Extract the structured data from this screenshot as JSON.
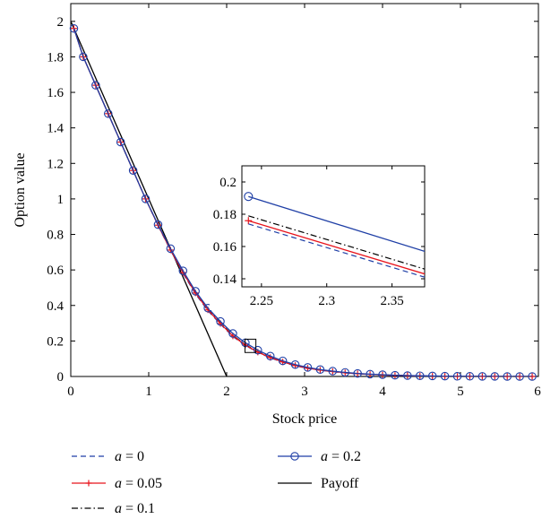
{
  "chart_data": [
    {
      "type": "line",
      "xlabel": "Stock price",
      "ylabel": "Option value",
      "xlim": [
        0,
        6
      ],
      "ylim": [
        0,
        2.1
      ],
      "xticks": [
        "0",
        "1",
        "2",
        "3",
        "4",
        "5",
        "6"
      ],
      "yticks": [
        "0",
        "0.2",
        "0.4",
        "0.6",
        "0.8",
        "1",
        "1.2",
        "1.4",
        "1.6",
        "1.8",
        "2"
      ],
      "grid": false,
      "legend_position": "below",
      "x": [
        0.04,
        0.16,
        0.32,
        0.48,
        0.64,
        0.8,
        0.96,
        1.12,
        1.28,
        1.44,
        1.6,
        1.76,
        1.92,
        2.08,
        2.24,
        2.4,
        2.56,
        2.72,
        2.88,
        3.04,
        3.2,
        3.36,
        3.52,
        3.68,
        3.84,
        4.0,
        4.16,
        4.32,
        4.48,
        4.64,
        4.8,
        4.96,
        5.12,
        5.28,
        5.44,
        5.6,
        5.76,
        5.92
      ],
      "series": [
        {
          "name": "a = 0",
          "color": "#1f3fa6",
          "style": "dashed",
          "values": [
            1.96,
            1.8,
            1.64,
            1.48,
            1.32,
            1.16,
            1.0,
            0.85,
            0.71,
            0.58,
            0.465,
            0.37,
            0.295,
            0.225,
            0.175,
            0.135,
            0.105,
            0.08,
            0.06,
            0.045,
            0.035,
            0.027,
            0.02,
            0.015,
            0.011,
            0.008,
            0.006,
            0.004,
            0.003,
            0.002,
            0.0015,
            0.001,
            0.001,
            0.0005,
            0.0005,
            0.0,
            0.0,
            0.0
          ]
        },
        {
          "name": "a = 0.05",
          "color": "#e8141c",
          "style": "solid-plus",
          "values": [
            1.96,
            1.8,
            1.64,
            1.48,
            1.32,
            1.16,
            1.0,
            0.852,
            0.712,
            0.585,
            0.47,
            0.375,
            0.298,
            0.228,
            0.177,
            0.137,
            0.107,
            0.082,
            0.062,
            0.047,
            0.036,
            0.028,
            0.021,
            0.016,
            0.012,
            0.009,
            0.006,
            0.005,
            0.003,
            0.002,
            0.0015,
            0.001,
            0.001,
            0.0005,
            0.0005,
            0.0,
            0.0,
            0.0
          ]
        },
        {
          "name": "a = 0.1",
          "color": "#000000",
          "style": "dashdot",
          "values": [
            1.96,
            1.8,
            1.64,
            1.48,
            1.32,
            1.16,
            1.0,
            0.853,
            0.714,
            0.588,
            0.473,
            0.378,
            0.301,
            0.231,
            0.18,
            0.139,
            0.109,
            0.083,
            0.063,
            0.048,
            0.037,
            0.028,
            0.021,
            0.016,
            0.012,
            0.009,
            0.007,
            0.005,
            0.003,
            0.002,
            0.0015,
            0.001,
            0.001,
            0.0005,
            0.0005,
            0.0,
            0.0,
            0.0
          ]
        },
        {
          "name": "a = 0.2",
          "color": "#1f3fa6",
          "style": "solid-circle",
          "values": [
            1.96,
            1.8,
            1.64,
            1.48,
            1.32,
            1.16,
            1.0,
            0.855,
            0.72,
            0.595,
            0.48,
            0.385,
            0.31,
            0.242,
            0.19,
            0.148,
            0.115,
            0.088,
            0.067,
            0.051,
            0.039,
            0.03,
            0.023,
            0.017,
            0.013,
            0.01,
            0.007,
            0.005,
            0.004,
            0.003,
            0.002,
            0.001,
            0.001,
            0.0005,
            0.0005,
            0.0,
            0.0,
            0.0
          ]
        },
        {
          "name": "Payoff",
          "color": "#000000",
          "style": "solid",
          "x": [
            0,
            2,
            6
          ],
          "values": [
            2.0,
            0.0,
            0.0
          ]
        }
      ]
    },
    {
      "type": "line",
      "inset": true,
      "xlim": [
        2.235,
        2.375
      ],
      "ylim": [
        0.135,
        0.21
      ],
      "xticks": [
        "2.25",
        "2.3",
        "2.35"
      ],
      "yticks": [
        "0.14",
        "0.16",
        "0.18",
        "0.2"
      ],
      "x": [
        2.24,
        2.375
      ],
      "series": [
        {
          "name": "a = 0.2",
          "values": [
            0.191,
            0.157
          ]
        },
        {
          "name": "a = 0.1",
          "values": [
            0.179,
            0.146
          ]
        },
        {
          "name": "a = 0.05",
          "values": [
            0.176,
            0.143
          ]
        },
        {
          "name": "a = 0",
          "values": [
            0.174,
            0.141
          ]
        }
      ]
    }
  ],
  "legend": [
    {
      "var": "a",
      "rest": " = 0",
      "series": "a = 0"
    },
    {
      "var": "a",
      "rest": " = 0.05",
      "series": "a = 0.05"
    },
    {
      "var": "a",
      "rest": " = 0.1",
      "series": "a = 0.1"
    },
    {
      "var": "a",
      "rest": " = 0.2",
      "series": "a = 0.2"
    },
    {
      "var": "",
      "rest": "Payoff",
      "series": "Payoff"
    }
  ]
}
